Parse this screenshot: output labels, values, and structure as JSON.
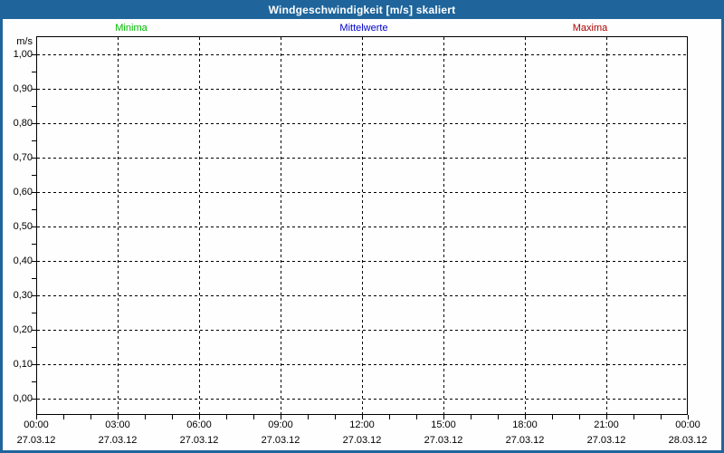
{
  "window": {
    "title": "Windgeschwindigkeit [m/s] skaliert"
  },
  "colors": {
    "frame_blue": "#1F659B",
    "background_white": "#FDFEFD",
    "grid_black": "#000000",
    "minima_green": "#00BB00",
    "mittelwerte_blue": "#0000CC",
    "maxima_red": "#AA0000"
  },
  "legend": {
    "items": [
      {
        "label": "Minima",
        "color": "#00BB00"
      },
      {
        "label": "Mittelwerte",
        "color": "#0000CC"
      },
      {
        "label": "Maxima",
        "color": "#AA0000"
      }
    ]
  },
  "y_axis": {
    "unit": "m/s",
    "tick_labels": [
      "1,00",
      "0,90",
      "0,80",
      "0,70",
      "0,60",
      "0,50",
      "0,40",
      "0,30",
      "0,20",
      "0,10",
      "0,00"
    ]
  },
  "x_axis": {
    "ticks": [
      {
        "time": "00:00",
        "date": "27.03.12"
      },
      {
        "time": "03:00",
        "date": "27.03.12"
      },
      {
        "time": "06:00",
        "date": "27.03.12"
      },
      {
        "time": "09:00",
        "date": "27.03.12"
      },
      {
        "time": "12:00",
        "date": "27.03.12"
      },
      {
        "time": "15:00",
        "date": "27.03.12"
      },
      {
        "time": "18:00",
        "date": "27.03.12"
      },
      {
        "time": "21:00",
        "date": "27.03.12"
      },
      {
        "time": "00:00",
        "date": "28.03.12"
      }
    ]
  },
  "chart_data": {
    "type": "line",
    "title": "Windgeschwindigkeit [m/s] skaliert",
    "ylabel": "m/s",
    "ylim": [
      0.0,
      1.0
    ],
    "y_tick_step": 0.1,
    "y_minor_tick_step": 0.05,
    "x_tick_times": [
      "00:00",
      "03:00",
      "06:00",
      "09:00",
      "12:00",
      "15:00",
      "18:00",
      "21:00",
      "00:00"
    ],
    "x_tick_dates": [
      "27.03.12",
      "27.03.12",
      "27.03.12",
      "27.03.12",
      "27.03.12",
      "27.03.12",
      "27.03.12",
      "27.03.12",
      "28.03.12"
    ],
    "x_minor_tick_interval_hours": 1,
    "grid": "dashed",
    "legend_position": "top",
    "no_data_plotted": true,
    "series": [
      {
        "name": "Minima",
        "color": "#00BB00",
        "values": []
      },
      {
        "name": "Mittelwerte",
        "color": "#0000CC",
        "values": []
      },
      {
        "name": "Maxima",
        "color": "#AA0000",
        "values": []
      }
    ]
  }
}
